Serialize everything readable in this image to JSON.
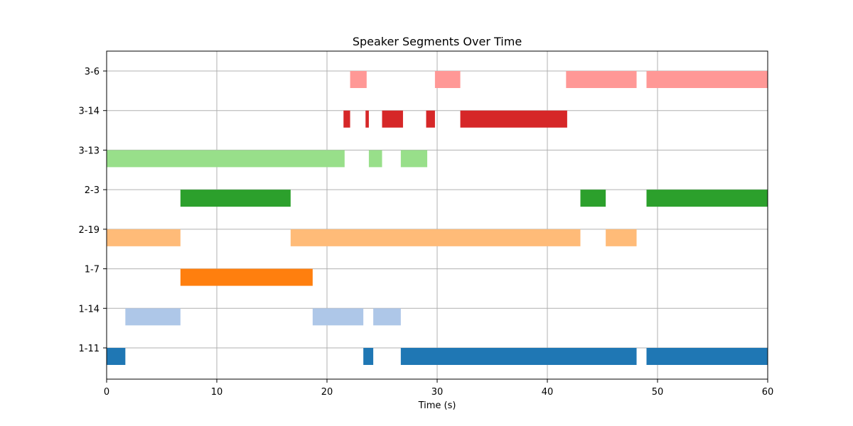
{
  "chart_data": {
    "type": "bar",
    "title": "Speaker Segments Over Time",
    "xlabel": "Time (s)",
    "ylabel": "",
    "xlim": [
      0,
      60
    ],
    "x_ticks": [
      0,
      10,
      20,
      30,
      40,
      50,
      60
    ],
    "grid": true,
    "categories": [
      "1-11",
      "1-14",
      "1-7",
      "2-19",
      "2-3",
      "3-13",
      "3-14",
      "3-6"
    ],
    "series": [
      {
        "category": "1-11",
        "color": "#1f77b4",
        "segments": [
          [
            0.0,
            1.7
          ],
          [
            23.3,
            24.2
          ],
          [
            26.7,
            48.1
          ],
          [
            49.0,
            60.0
          ]
        ]
      },
      {
        "category": "1-14",
        "color": "#aec7e8",
        "segments": [
          [
            1.7,
            6.7
          ],
          [
            18.7,
            23.3
          ],
          [
            24.2,
            26.7
          ]
        ]
      },
      {
        "category": "1-7",
        "color": "#ff7f0e",
        "segments": [
          [
            6.7,
            18.7
          ]
        ]
      },
      {
        "category": "2-19",
        "color": "#ffbb78",
        "segments": [
          [
            0.0,
            6.7
          ],
          [
            16.7,
            43.0
          ],
          [
            45.3,
            48.1
          ]
        ]
      },
      {
        "category": "2-3",
        "color": "#2ca02c",
        "segments": [
          [
            6.7,
            16.7
          ],
          [
            43.0,
            45.3
          ],
          [
            49.0,
            60.0
          ]
        ]
      },
      {
        "category": "3-13",
        "color": "#98df8a",
        "segments": [
          [
            0.0,
            21.6
          ],
          [
            23.8,
            25.0
          ],
          [
            26.7,
            29.1
          ]
        ]
      },
      {
        "category": "3-14",
        "color": "#d62728",
        "segments": [
          [
            21.5,
            22.1
          ],
          [
            23.5,
            23.8
          ],
          [
            25.0,
            26.9
          ],
          [
            29.0,
            29.8
          ],
          [
            32.1,
            41.8
          ]
        ]
      },
      {
        "category": "3-6",
        "color": "#ff9896",
        "segments": [
          [
            22.1,
            23.6
          ],
          [
            29.8,
            32.1
          ],
          [
            41.7,
            48.1
          ],
          [
            49.0,
            60.0
          ]
        ]
      }
    ]
  }
}
